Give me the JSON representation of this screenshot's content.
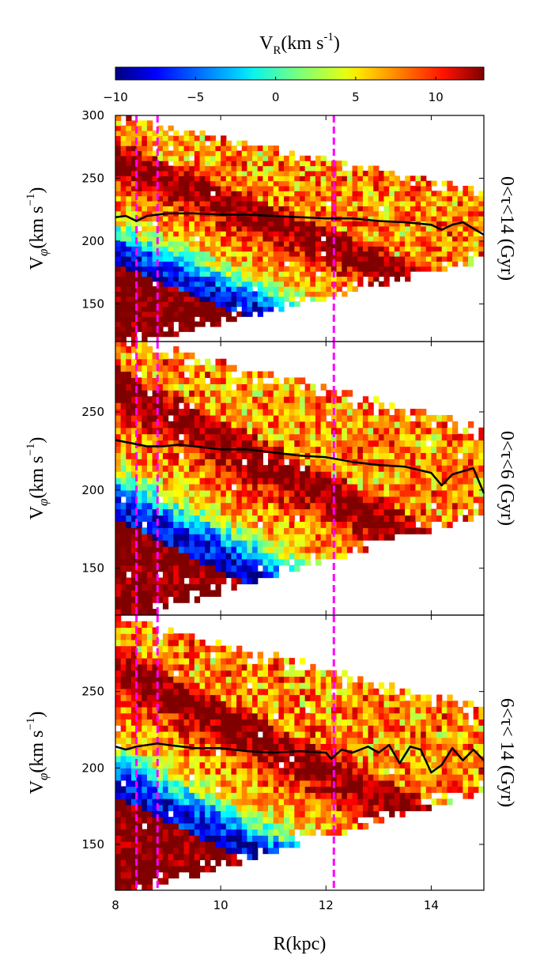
{
  "chart_data": {
    "type": "heatmap",
    "xlabel": "R(kpc)",
    "x_ticks": [
      8,
      10,
      12,
      14
    ],
    "xlim": [
      8,
      15
    ],
    "colorbar": {
      "label": "V_R(km s^-1)",
      "label_main": "V",
      "label_sub": "R",
      "label_rest": "(km s",
      "label_sup": "-1",
      "label_close": ")",
      "colormap": "jet",
      "range": [
        -10,
        13
      ],
      "ticks": [
        "−10",
        "−5",
        "0",
        "5",
        "10"
      ],
      "tick_values": [
        -10,
        -5,
        0,
        5,
        10
      ]
    },
    "ylabel": "V_phi(km s^-1)",
    "ylabel_main": "V",
    "ylabel_sub": "φ",
    "ylabel_rest": "(km s",
    "ylabel_sup": "−1",
    "ylabel_close": ")",
    "vertical_lines": {
      "color": "#ff00ff",
      "style": "dashed",
      "x": [
        8.4,
        8.8,
        12.15
      ]
    },
    "panels": [
      {
        "name": "0<τ<14 (Gyr)",
        "ylim": [
          120,
          300
        ],
        "y_ticks": [
          150,
          200,
          250,
          300
        ],
        "mean_line": {
          "x": [
            8.0,
            8.2,
            8.4,
            8.6,
            8.8,
            9.0,
            9.5,
            10.0,
            10.5,
            11.0,
            11.5,
            12.0,
            12.5,
            13.0,
            13.5,
            14.0,
            14.2,
            14.4,
            14.6,
            14.8,
            15.0
          ],
          "y": [
            219,
            220,
            216,
            220,
            221,
            222,
            222,
            221,
            221,
            220,
            219,
            218,
            218,
            216,
            215,
            213,
            209,
            213,
            215,
            210,
            205
          ]
        }
      },
      {
        "name": "0<τ<6 (Gyr)",
        "ylim": [
          120,
          295
        ],
        "y_ticks": [
          150,
          200,
          250
        ],
        "mean_line": {
          "x": [
            8.0,
            8.3,
            8.6,
            8.9,
            9.2,
            9.5,
            10.0,
            10.5,
            11.0,
            11.5,
            12.0,
            12.5,
            13.0,
            13.5,
            14.0,
            14.2,
            14.4,
            14.6,
            14.8,
            15.0
          ],
          "y": [
            232,
            230,
            228,
            228,
            229,
            228,
            226,
            226,
            224,
            222,
            221,
            218,
            216,
            215,
            211,
            203,
            210,
            212,
            214,
            198
          ]
        }
      },
      {
        "name": "6<τ< 14 (Gyr)",
        "ylim": [
          120,
          300
        ],
        "y_ticks": [
          150,
          200,
          250
        ],
        "mean_line": {
          "x": [
            8.0,
            8.2,
            8.4,
            8.6,
            8.8,
            9.0,
            9.5,
            10.0,
            10.5,
            11.0,
            11.5,
            12.0,
            12.1,
            12.3,
            12.5,
            12.8,
            13.0,
            13.2,
            13.4,
            13.6,
            13.8,
            14.0,
            14.2,
            14.4,
            14.6,
            14.8,
            15.0
          ],
          "y": [
            214,
            212,
            214,
            215,
            216,
            215,
            213,
            213,
            211,
            210,
            211,
            210,
            206,
            212,
            210,
            214,
            210,
            215,
            203,
            214,
            212,
            197,
            202,
            213,
            205,
            212,
            205
          ]
        }
      }
    ]
  }
}
